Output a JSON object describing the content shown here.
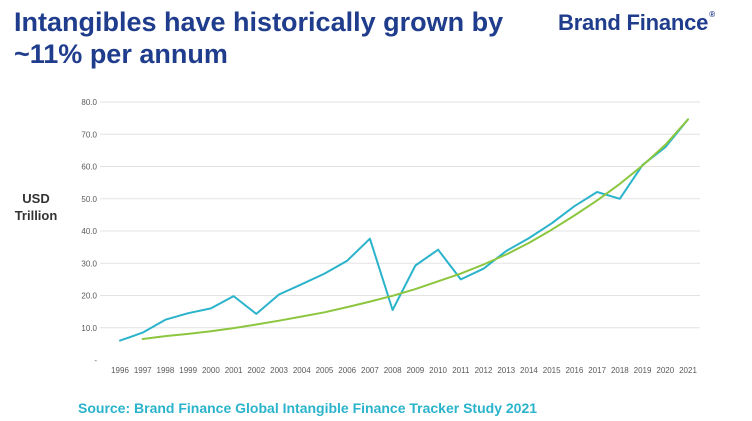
{
  "header": {
    "title": "Intangibles have historically grown by ~11% per annum",
    "brand": "Brand Finance",
    "brand_mark": "®"
  },
  "footer": {
    "source": "Source: Brand Finance Global Intangible Finance Tracker Study 2021"
  },
  "colors": {
    "title": "#1f3d8c",
    "actual_line": "#2ab3cb",
    "trend_line": "#8cc63f",
    "source": "#2ab3cb"
  },
  "chart_data": {
    "type": "line",
    "ylabel": "USD Trillion",
    "xlabel": "",
    "ylim": [
      0,
      80
    ],
    "y_ticks": [
      "-",
      "10.0",
      "20.0",
      "30.0",
      "40.0",
      "50.0",
      "60.0",
      "70.0",
      "80.0"
    ],
    "grid": true,
    "categories": [
      "1996",
      "1997",
      "1998",
      "1999",
      "2000",
      "2001",
      "2002",
      "2003",
      "2004",
      "2005",
      "2006",
      "2007",
      "2008",
      "2009",
      "2010",
      "2011",
      "2012",
      "2013",
      "2014",
      "2015",
      "2016",
      "2017",
      "2018",
      "2019",
      "2020",
      "2021"
    ],
    "series": [
      {
        "values": [
          6.0,
          8.5,
          12.5,
          14.5,
          16.0,
          19.8,
          14.3,
          20.3,
          23.5,
          26.8,
          30.8,
          37.6,
          15.5,
          29.3,
          34.2,
          25.0,
          28.3,
          33.8,
          37.8,
          42.4,
          47.7,
          52.1,
          50.0,
          60.5,
          66.0,
          74.6
        ]
      },
      {
        "values": [
          null,
          6.5,
          7.4,
          8.1,
          8.9,
          9.9,
          11.0,
          12.2,
          13.5,
          14.8,
          16.4,
          18.1,
          19.9,
          22.0,
          24.4,
          26.8,
          29.6,
          32.7,
          36.3,
          40.4,
          44.8,
          49.5,
          54.6,
          60.3,
          66.7,
          74.6
        ]
      }
    ]
  }
}
